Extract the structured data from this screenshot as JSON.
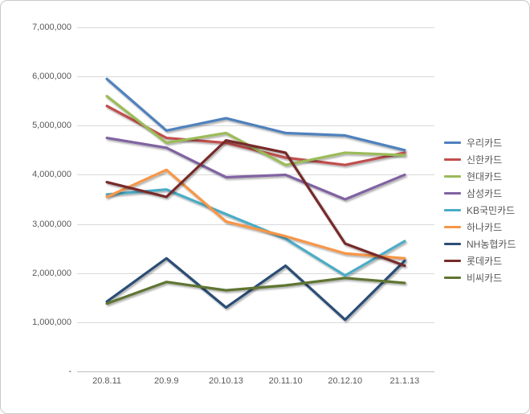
{
  "chart_data": {
    "type": "line",
    "title": "",
    "xlabel": "",
    "ylabel": "",
    "categories": [
      "20.8.11",
      "20.9.9",
      "20.10.13",
      "20.11.10",
      "20.12.10",
      "21.1.13"
    ],
    "series": [
      {
        "name": "우리카드",
        "color": "#4F81BD",
        "values": [
          5950000,
          4900000,
          5150000,
          4850000,
          4800000,
          4500000
        ]
      },
      {
        "name": "신한카드",
        "color": "#C0504D",
        "values": [
          5400000,
          4750000,
          4650000,
          4350000,
          4200000,
          4450000
        ]
      },
      {
        "name": "현대카드",
        "color": "#9BBB59",
        "values": [
          5600000,
          4650000,
          4850000,
          4200000,
          4450000,
          4400000
        ]
      },
      {
        "name": "삼성카드",
        "color": "#8064A2",
        "values": [
          4750000,
          4550000,
          3950000,
          4000000,
          3500000,
          4000000
        ]
      },
      {
        "name": "KB국민카드",
        "color": "#4BACC6",
        "values": [
          3600000,
          3700000,
          3200000,
          2700000,
          1950000,
          2650000
        ]
      },
      {
        "name": "하나카드",
        "color": "#F79646",
        "values": [
          3550000,
          4100000,
          3050000,
          2750000,
          2400000,
          2300000
        ]
      },
      {
        "name": "NH농협카드",
        "color": "#2C4D75",
        "values": [
          1420000,
          2300000,
          1300000,
          2150000,
          1050000,
          2250000
        ]
      },
      {
        "name": "롯데카드",
        "color": "#772C2A",
        "values": [
          3850000,
          3550000,
          4700000,
          4450000,
          2600000,
          2150000
        ]
      },
      {
        "name": "비씨카드",
        "color": "#5F7530",
        "values": [
          1380000,
          1820000,
          1650000,
          1750000,
          1900000,
          1800000
        ]
      }
    ],
    "ylim": [
      0,
      7000000
    ],
    "ytick_step": 1000000,
    "y_tick_labels": [
      "7,000,000",
      "6,000,000",
      "5,000,000",
      "4,000,000",
      "3,000,000",
      "2,000,000",
      "1,000,000",
      "-"
    ],
    "grid": true,
    "legend_position": "right"
  }
}
